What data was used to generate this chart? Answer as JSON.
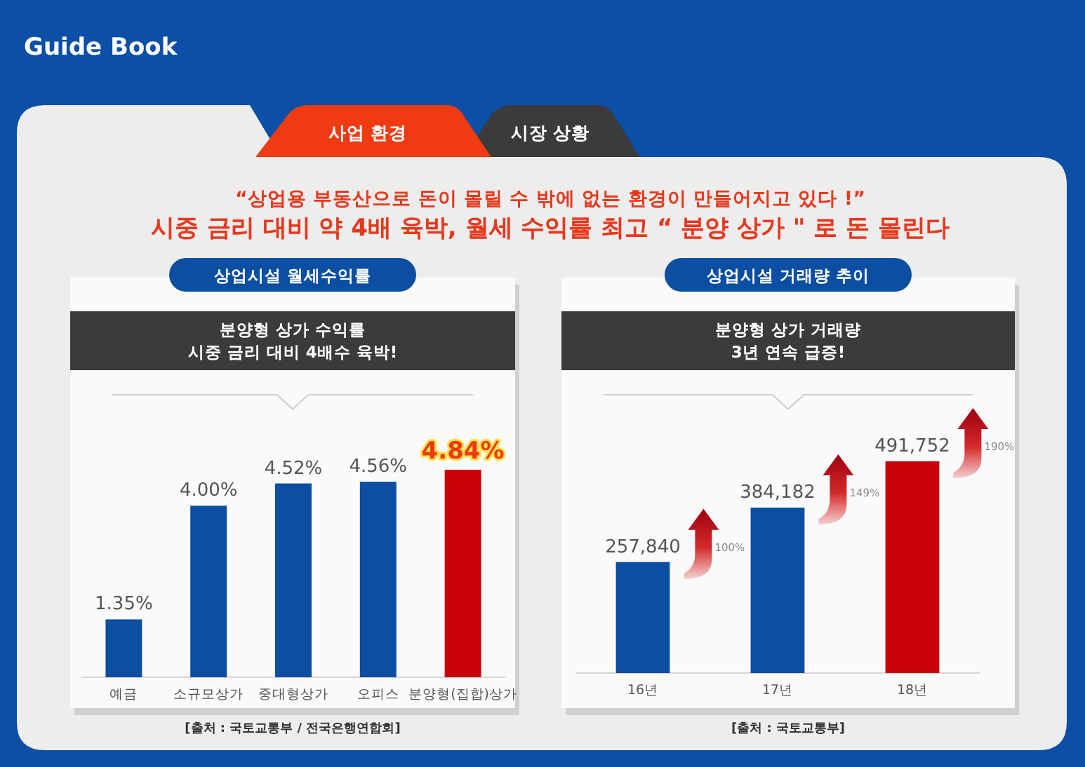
{
  "chart_data": [
    {
      "type": "other",
      "title": "Guide Book",
      "annotations": [
        "사업 환경",
        "시장 상황",
        "“상업용 부동산으로 돈이 몰릴 수 밖에 없는 환경이 만들어지고 있다 !”",
        "시중 금리 대비 약 4배 육박,  월세 수익률 최고 “ 분양 상가 \" 로 돈 몰린다"
      ]
    },
    {
      "type": "bar",
      "title": "상업시설 월세수익률",
      "subtitle": "분양형 상가 수익률\n시중 금리 대비 4배수 육박!",
      "categories": [
        "예금",
        "소규모상가",
        "중대형상가",
        "오피스",
        "분양형(집합)상가"
      ],
      "values": [
        1.35,
        4.0,
        4.52,
        4.56,
        4.84
      ],
      "colors": [
        "#0b4ea2",
        "#0b4ea2",
        "#0b4ea2",
        "#0b4ea2",
        "#c8000a"
      ],
      "value_labels": [
        "1.35%",
        "4.00%",
        "4.52%",
        "4.56%",
        "4.84%"
      ],
      "annotations": [
        "[출처 : 국토교통부 / 전국은행연합회]"
      ]
    },
    {
      "type": "bar",
      "title": "상업시설 거래량 추이",
      "subtitle": "분양형 상가 거래량\n3년 연속 급증!",
      "categories": [
        "16년",
        "17년",
        "18년"
      ],
      "values": [
        257840,
        384182,
        491752
      ],
      "colors": [
        "#0b4ea2",
        "#0b4ea2",
        "#c8000a"
      ],
      "value_labels": [
        "257,840",
        "384,182",
        "491,752"
      ],
      "annotations": [
        "100%",
        "149%",
        "190%",
        "[출처 : 국토교통부]"
      ]
    }
  ]
}
